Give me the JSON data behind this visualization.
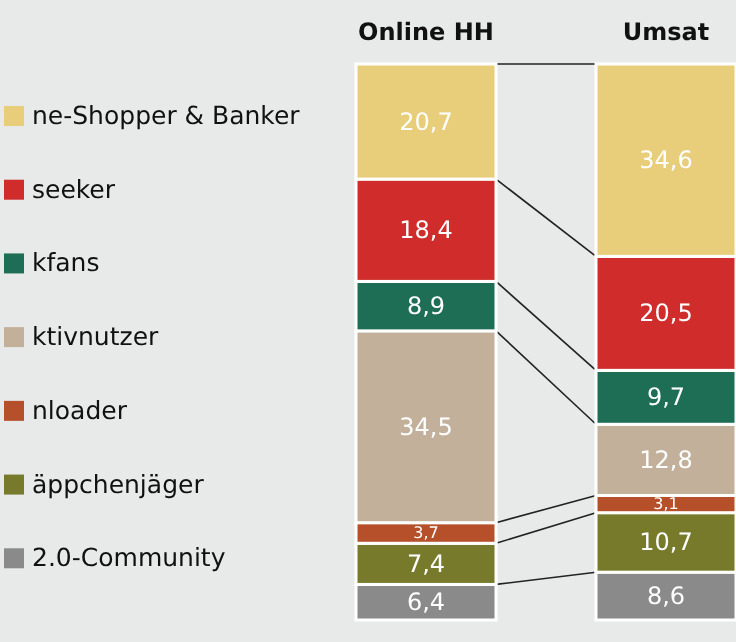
{
  "chart_data": {
    "type": "bar",
    "stacked": true,
    "categories": [
      "Online HH",
      "Umsat"
    ],
    "legend": "left",
    "series": [
      {
        "name": "2.0-Community",
        "color": "#8a8a8a",
        "values": [
          6.4,
          8.6
        ],
        "value_labels": [
          "6,4",
          "8,6"
        ]
      },
      {
        "name": "äppchenjäger",
        "color": "#767a2a",
        "values": [
          7.4,
          10.7
        ],
        "value_labels": [
          "7,4",
          "10,7"
        ]
      },
      {
        "name": "nloader",
        "color": "#b5502a",
        "values": [
          3.7,
          3.1
        ],
        "value_labels": [
          "3,7",
          "3,1"
        ]
      },
      {
        "name": "ktivnutzer",
        "color": "#c3b09a",
        "values": [
          34.5,
          12.8
        ],
        "value_labels": [
          "34,5",
          "12,8"
        ]
      },
      {
        "name": "kfans",
        "color": "#1e6e55",
        "values": [
          8.9,
          9.7
        ],
        "value_labels": [
          "8,9",
          "9,7"
        ]
      },
      {
        "name": "seeker",
        "color": "#d02c2c",
        "values": [
          18.4,
          20.5
        ],
        "value_labels": [
          "18,4",
          "20,5"
        ]
      },
      {
        "name": "ne-Shopper & Banker",
        "color": "#e8cd7a",
        "values": [
          20.7,
          34.6
        ],
        "value_labels": [
          "20,7",
          "34,6"
        ]
      }
    ]
  }
}
